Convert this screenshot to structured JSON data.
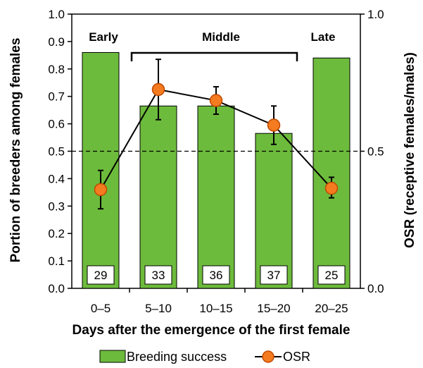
{
  "chart_data": {
    "type": "bar",
    "xlabel": "Days after the emergence of the first female",
    "ylabel": "Portion of breeders among females",
    "ylabel_right": "OSR (receptive females/males)",
    "categories": [
      "0–5",
      "5–10",
      "10–15",
      "15–20",
      "20–25"
    ],
    "ylim": [
      0,
      1.0
    ],
    "yticks": [
      "0.0",
      "0.1",
      "0.2",
      "0.3",
      "0.4",
      "0.5",
      "0.6",
      "0.7",
      "0.8",
      "0.9",
      "1.0"
    ],
    "ylim_right": [
      0,
      1.0
    ],
    "yticks_right": [
      "0.0",
      "0.5",
      "1.0"
    ],
    "reference_line": 0.5,
    "series": [
      {
        "name": "Breeding success",
        "type": "bar",
        "color": "#6dbb3c",
        "values": [
          0.86,
          0.665,
          0.665,
          0.565,
          0.84
        ],
        "n_labels": [
          "29",
          "33",
          "36",
          "37",
          "25"
        ]
      },
      {
        "name": "OSR",
        "type": "line",
        "color": "#f47b20",
        "values": [
          0.36,
          0.725,
          0.685,
          0.595,
          0.365
        ],
        "err_low": [
          0.29,
          0.615,
          0.635,
          0.525,
          0.33
        ],
        "err_high": [
          0.43,
          0.835,
          0.735,
          0.665,
          0.405
        ]
      }
    ],
    "phases": [
      {
        "label": "Early"
      },
      {
        "label": "Middle"
      },
      {
        "label": "Late"
      }
    ],
    "legend_position": "bottom",
    "grid": false
  }
}
